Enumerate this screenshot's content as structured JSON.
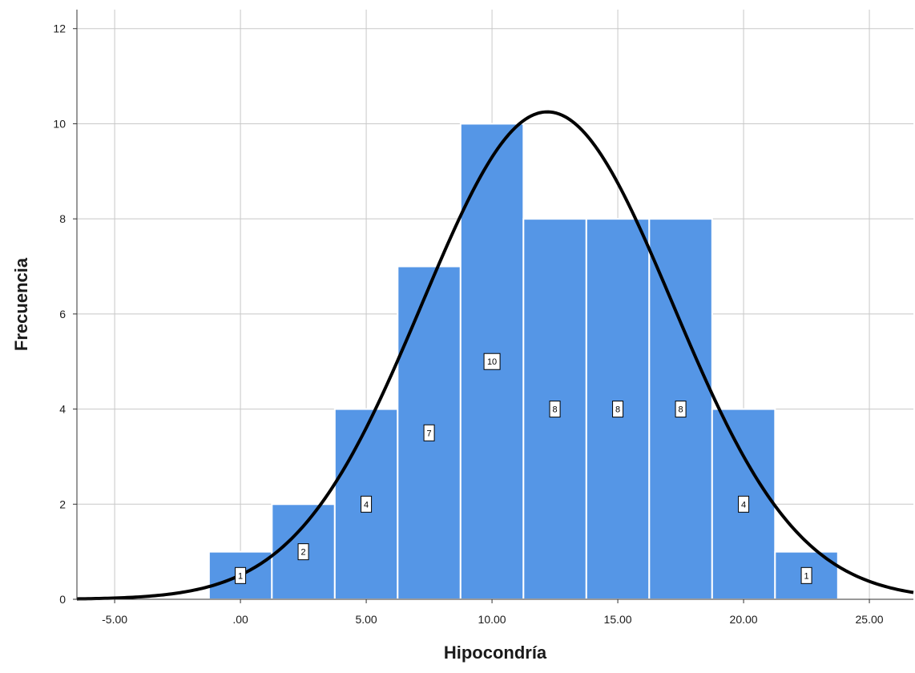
{
  "chart_data": {
    "type": "bar",
    "subtype": "histogram",
    "xlabel": "Hipocondría",
    "ylabel": "Frecuencia",
    "xlim": [
      -6.5,
      26.75
    ],
    "ylim": [
      0,
      12.4
    ],
    "x_ticks": [
      -5,
      0,
      5,
      10,
      15,
      20,
      25
    ],
    "x_tick_labels": [
      "-5.00",
      ".00",
      "5.00",
      "10.00",
      "15.00",
      "20.00",
      "25.00"
    ],
    "y_ticks": [
      0,
      2,
      4,
      6,
      8,
      10,
      12
    ],
    "y_tick_labels": [
      "0",
      "2",
      "4",
      "6",
      "8",
      "10",
      "12"
    ],
    "bin_width": 2.5,
    "bins": [
      {
        "start": -1.25,
        "end": 1.25,
        "count": 1,
        "label": "1"
      },
      {
        "start": 1.25,
        "end": 3.75,
        "count": 2,
        "label": "2"
      },
      {
        "start": 3.75,
        "end": 6.25,
        "count": 4,
        "label": "4"
      },
      {
        "start": 6.25,
        "end": 8.75,
        "count": 7,
        "label": "7"
      },
      {
        "start": 8.75,
        "end": 11.25,
        "count": 10,
        "label": "10"
      },
      {
        "start": 11.25,
        "end": 13.75,
        "count": 8,
        "label": "8"
      },
      {
        "start": 13.75,
        "end": 16.25,
        "count": 8,
        "label": "8"
      },
      {
        "start": 16.25,
        "end": 18.75,
        "count": 8,
        "label": "8"
      },
      {
        "start": 18.75,
        "end": 21.25,
        "count": 4,
        "label": "4"
      },
      {
        "start": 21.25,
        "end": 23.75,
        "count": 1,
        "label": "1"
      }
    ],
    "normal_curve": {
      "mean": 12.2,
      "sd": 4.98,
      "n": 53,
      "peak": 10.25
    },
    "grid": true,
    "colors": {
      "bar": "#5596e6",
      "bar_edge": "#ffffff",
      "curve": "#000000",
      "grid": "#c8c8c8",
      "axis": "#333333"
    }
  }
}
